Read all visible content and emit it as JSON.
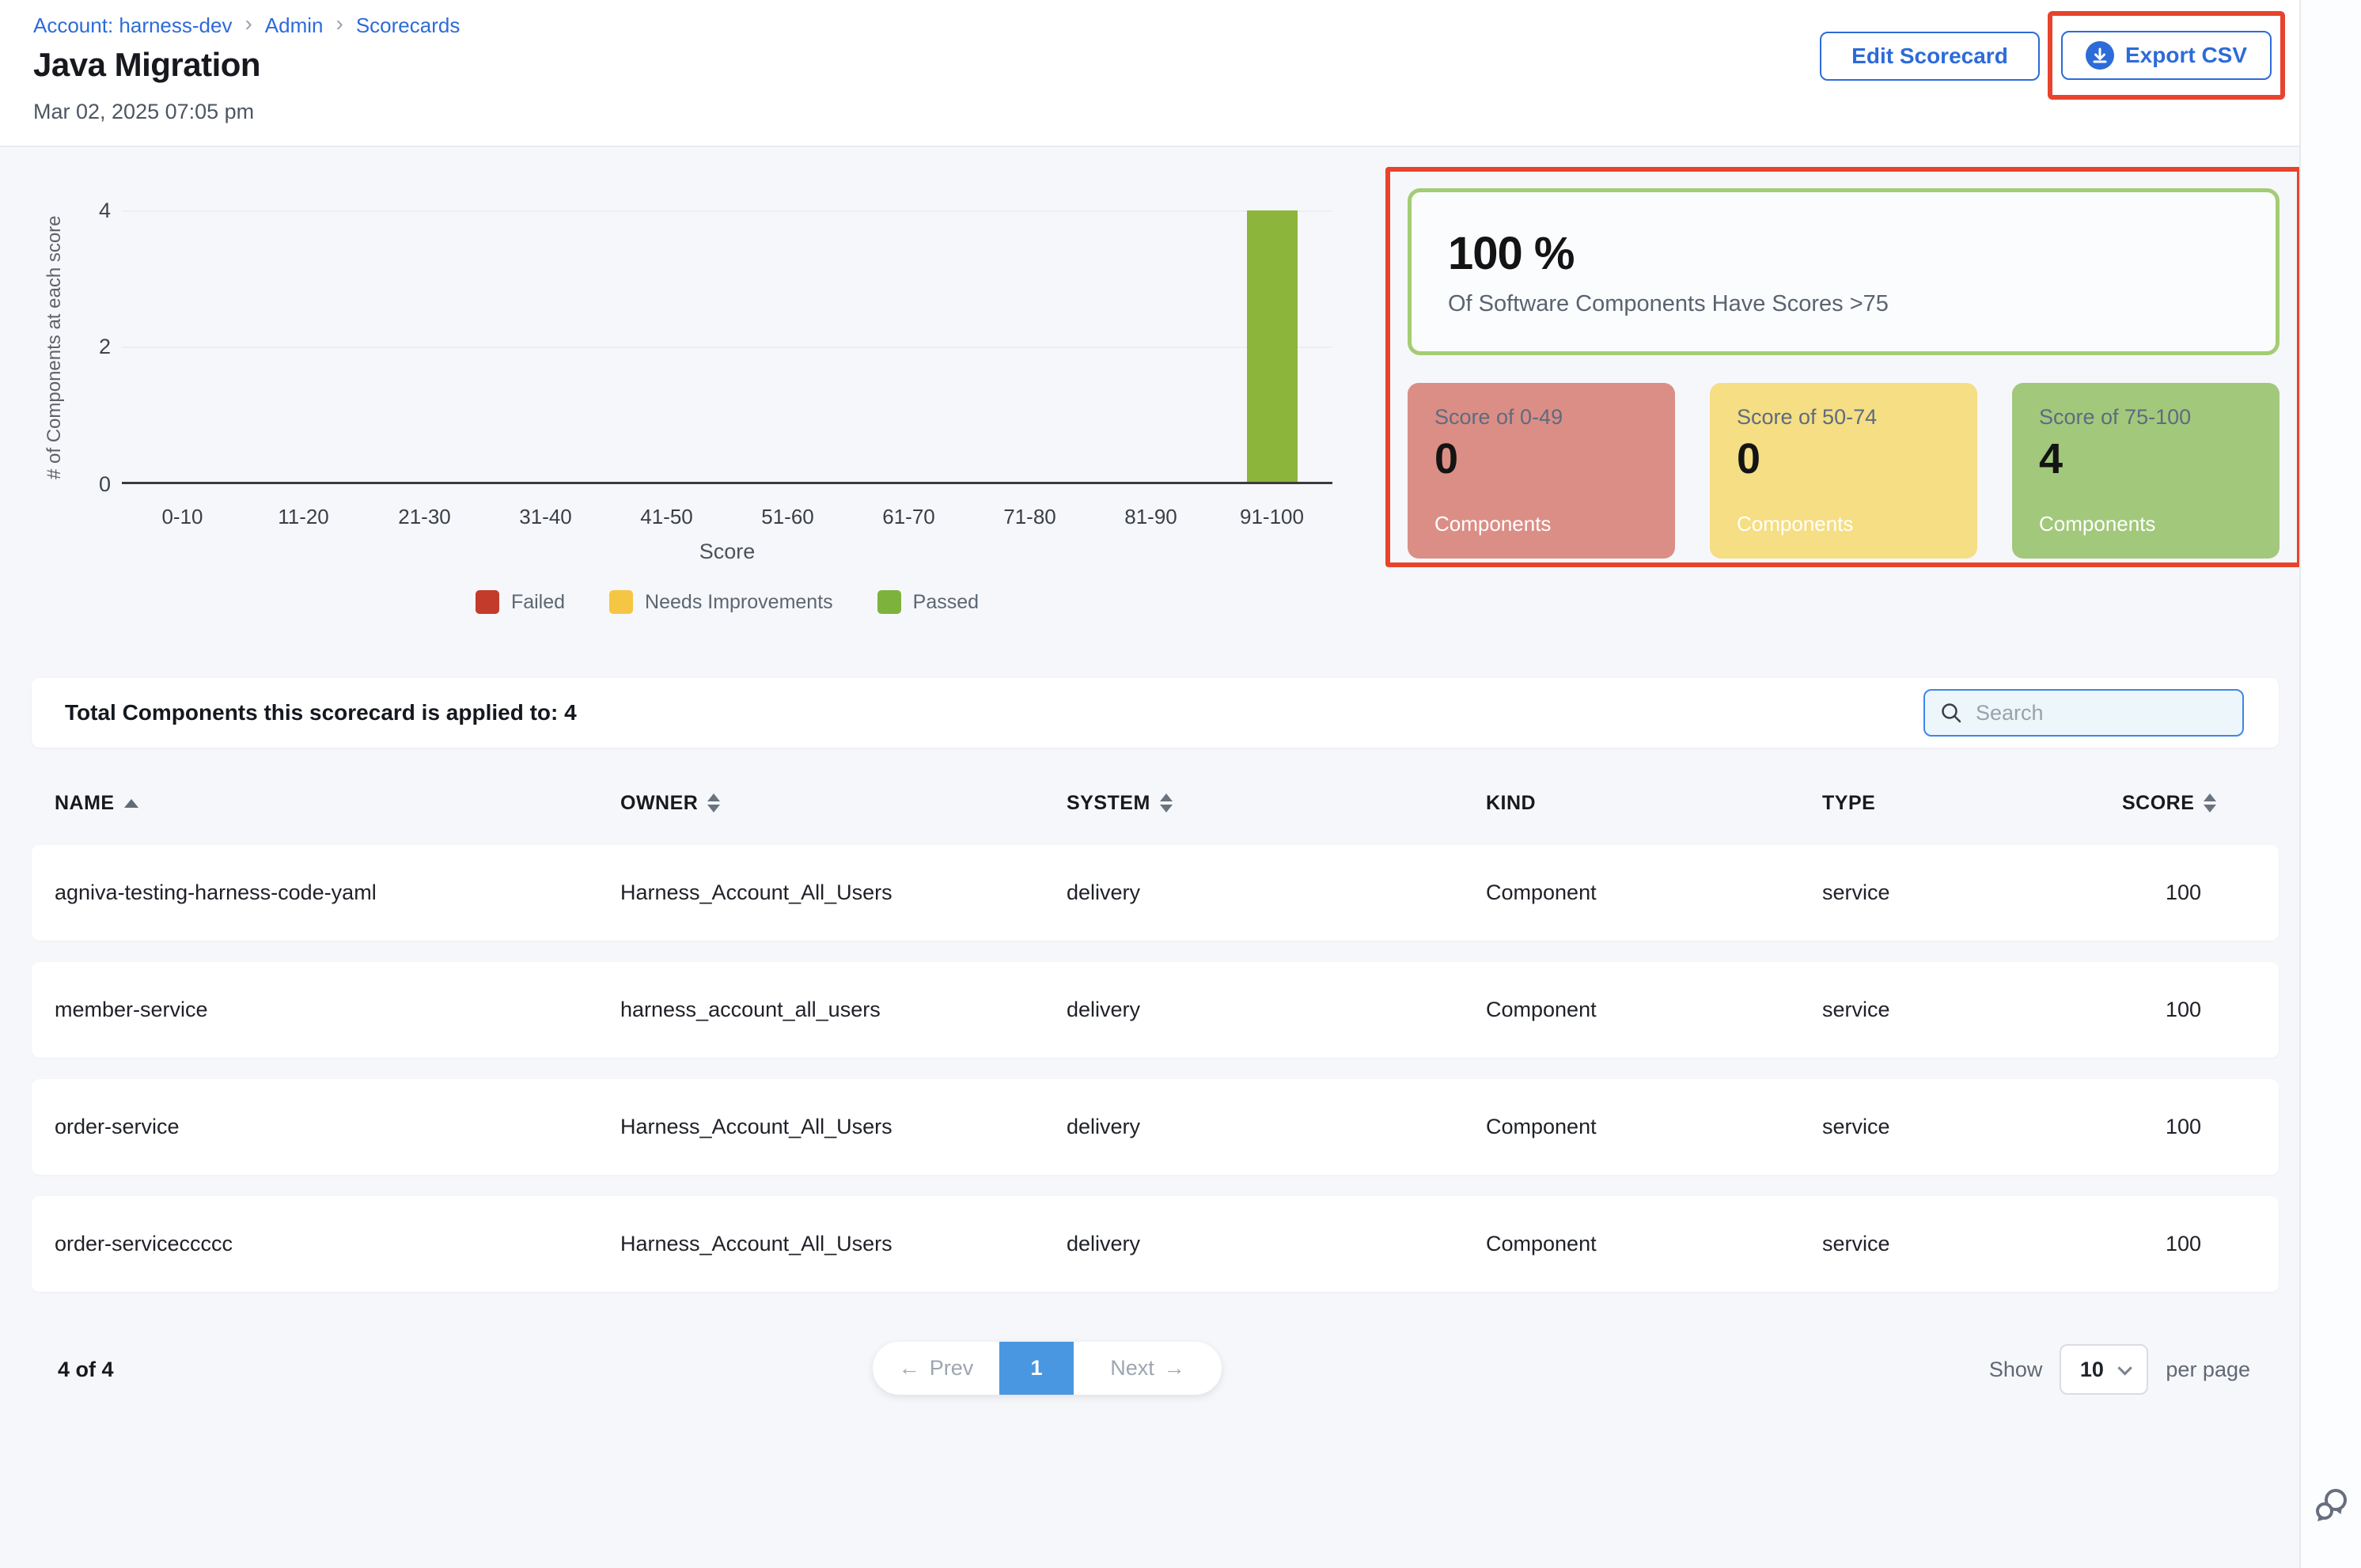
{
  "breadcrumb": {
    "separator": "›",
    "items": [
      {
        "label": "Account: harness-dev"
      },
      {
        "label": "Admin"
      },
      {
        "label": "Scorecards"
      }
    ]
  },
  "header": {
    "title": "Java Migration",
    "date": "Mar 02, 2025 07:05 pm",
    "edit_button": "Edit Scorecard",
    "export_button": "Export CSV"
  },
  "chart_data": {
    "type": "bar",
    "categories": [
      "0-10",
      "11-20",
      "21-30",
      "31-40",
      "41-50",
      "51-60",
      "61-70",
      "71-80",
      "81-90",
      "91-100"
    ],
    "values": [
      0,
      0,
      0,
      0,
      0,
      0,
      0,
      0,
      0,
      4
    ],
    "title": "",
    "xlabel": "Score",
    "ylabel": "# of Components at each score",
    "ylim": [
      0,
      4
    ],
    "yticks": [
      "0",
      "2",
      "4"
    ],
    "grid": true,
    "bar_color": "#8CB63B",
    "legend_position": "bottom",
    "legend": [
      {
        "label": "Failed",
        "color": "#C23B2B"
      },
      {
        "label": "Needs Improvements",
        "color": "#F5C644"
      },
      {
        "label": "Passed",
        "color": "#7DB33D"
      }
    ]
  },
  "summary_panel": {
    "annotation_color": "#E8432C",
    "percentage": "100 %",
    "subtitle": "Of Software Components Have Scores >75",
    "cards": [
      {
        "label": "Score of 0-49",
        "value": "0",
        "unit": "Components",
        "color": "#DB8E85"
      },
      {
        "label": "Score of 50-74",
        "value": "0",
        "unit": "Components",
        "color": "#F5DE83"
      },
      {
        "label": "Score of 75-100",
        "value": "4",
        "unit": "Components",
        "color": "#A2C87B"
      }
    ]
  },
  "table": {
    "summary": "Total Components this scorecard is applied to: 4",
    "search_placeholder": "Search",
    "columns": [
      {
        "label": "NAME",
        "sort": "asc"
      },
      {
        "label": "OWNER",
        "sort": "both"
      },
      {
        "label": "SYSTEM",
        "sort": "both"
      },
      {
        "label": "KIND",
        "sort": "none"
      },
      {
        "label": "TYPE",
        "sort": "none"
      },
      {
        "label": "SCORE",
        "sort": "both"
      }
    ],
    "rows": [
      {
        "name": "agniva-testing-harness-code-yaml",
        "owner": "Harness_Account_All_Users",
        "system": "delivery",
        "kind": "Component",
        "type": "service",
        "score": "100"
      },
      {
        "name": "member-service",
        "owner": "harness_account_all_users",
        "system": "delivery",
        "kind": "Component",
        "type": "service",
        "score": "100"
      },
      {
        "name": "order-service",
        "owner": "Harness_Account_All_Users",
        "system": "delivery",
        "kind": "Component",
        "type": "service",
        "score": "100"
      },
      {
        "name": "order-serviceccccc",
        "owner": "Harness_Account_All_Users",
        "system": "delivery",
        "kind": "Component",
        "type": "service",
        "score": "100"
      }
    ]
  },
  "pagination": {
    "range": "4 of 4",
    "prev_icon": "←",
    "prev": "Prev",
    "page": "1",
    "next": "Next",
    "next_icon": "→",
    "show_label": "Show",
    "page_size": "10",
    "per_page_label": "per page"
  }
}
